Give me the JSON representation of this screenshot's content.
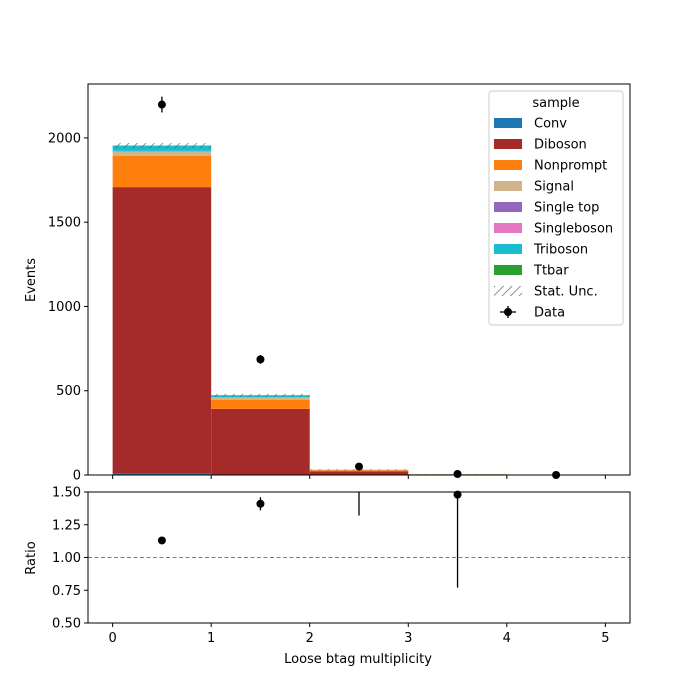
{
  "chart_data": [
    {
      "type": "bar",
      "stacked": true,
      "ylabel": "Events",
      "xlabel": "",
      "xlim": [
        -0.25,
        5.25
      ],
      "ylim": [
        0,
        2320
      ],
      "bin_edges": [
        0,
        1,
        2,
        3,
        4,
        5
      ],
      "xticks": [
        "0",
        "1",
        "2",
        "3",
        "4",
        "5"
      ],
      "yticks": [
        "0",
        "500",
        "1000",
        "1500",
        "2000"
      ],
      "ytick_values": [
        0,
        500,
        1000,
        1500,
        2000
      ],
      "legend_title": "sample",
      "legend_position": "upper right",
      "series": [
        {
          "name": "Conv",
          "color": "#1f77b4",
          "values": [
            8,
            2,
            0.3,
            0.1,
            0
          ]
        },
        {
          "name": "Diboson",
          "color": "#a52a2a",
          "values": [
            1700,
            390,
            22,
            3,
            0
          ]
        },
        {
          "name": "Nonprompt",
          "color": "#ff7f0e",
          "values": [
            185,
            55,
            6,
            1,
            0
          ]
        },
        {
          "name": "Signal",
          "color": "#d2b48c",
          "values": [
            25,
            12,
            1,
            0.2,
            0
          ]
        },
        {
          "name": "Single top",
          "color": "#9467bd",
          "values": [
            2,
            1,
            0.2,
            0,
            0
          ]
        },
        {
          "name": "Singleboson",
          "color": "#e377c2",
          "values": [
            3,
            1,
            0.2,
            0,
            0
          ]
        },
        {
          "name": "Triboson",
          "color": "#17becf",
          "values": [
            30,
            12,
            1,
            0.3,
            0
          ]
        },
        {
          "name": "Ttbar",
          "color": "#2ca02c",
          "values": [
            2,
            1,
            0.3,
            0.1,
            0
          ]
        }
      ],
      "stat_unc": {
        "name": "Stat. Unc.",
        "values": [
          15,
          8,
          3,
          1,
          0
        ]
      },
      "data": {
        "name": "Data",
        "x": [
          0.5,
          1.5,
          2.5,
          3.5,
          4.5
        ],
        "y": [
          2198,
          686,
          50,
          6,
          0
        ],
        "yerr": [
          47,
          26,
          7,
          2.4,
          0
        ]
      }
    },
    {
      "type": "scatter",
      "ylabel": "Ratio",
      "xlabel": "Loose btag multiplicity",
      "xlim": [
        -0.25,
        5.25
      ],
      "ylim": [
        0.5,
        1.5
      ],
      "xticks": [
        "0",
        "1",
        "2",
        "3",
        "4",
        "5"
      ],
      "yticks": [
        "0.50",
        "0.75",
        "1.00",
        "1.25",
        "1.50"
      ],
      "ytick_values": [
        0.5,
        0.75,
        1.0,
        1.25,
        1.5
      ],
      "reference_line": 1.0,
      "points": [
        {
          "x": 0.5,
          "y": 1.13,
          "yerr": 0.02
        },
        {
          "x": 1.5,
          "y": 1.41,
          "yerr": 0.05
        },
        {
          "x": 2.5,
          "y": 1.6,
          "yerr": 0.28
        },
        {
          "x": 3.5,
          "y": 1.48,
          "yerr": 0.71
        }
      ]
    }
  ]
}
